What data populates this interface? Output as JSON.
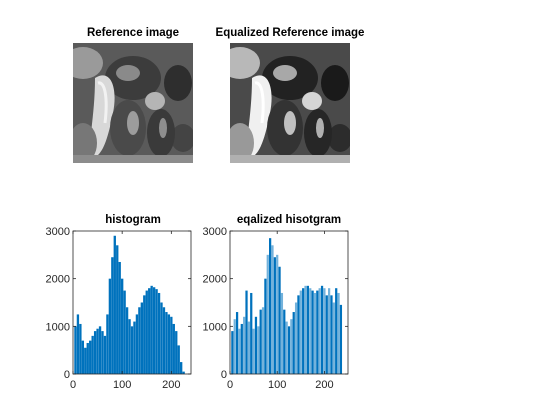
{
  "figure": {
    "titles": {
      "reference_image": "Reference image",
      "equalized_reference_image": "Equalized Reference image",
      "histogram": "histogram",
      "equalized_histogram": "eqalized hisotgram"
    }
  },
  "chart_data": [
    {
      "type": "bar",
      "title": "histogram",
      "xlabel": "",
      "ylabel": "",
      "xlim": [
        0,
        240
      ],
      "ylim": [
        0,
        3000
      ],
      "xticks": [
        0,
        100,
        200
      ],
      "yticks": [
        0,
        1000,
        2000,
        3000
      ],
      "grid": false,
      "color": "#0072BD",
      "x": [
        5,
        10,
        15,
        20,
        25,
        30,
        35,
        40,
        45,
        50,
        55,
        60,
        65,
        70,
        75,
        80,
        85,
        90,
        95,
        100,
        105,
        110,
        115,
        120,
        125,
        130,
        135,
        140,
        145,
        150,
        155,
        160,
        165,
        170,
        175,
        180,
        185,
        190,
        195,
        200,
        205,
        210,
        215,
        220,
        225
      ],
      "values": [
        1000,
        1250,
        1050,
        700,
        550,
        650,
        700,
        800,
        900,
        950,
        1000,
        900,
        800,
        1250,
        2000,
        2450,
        2900,
        2700,
        2350,
        2000,
        1750,
        1400,
        1150,
        1000,
        1100,
        1250,
        1400,
        1500,
        1650,
        1750,
        1800,
        1850,
        1820,
        1780,
        1700,
        1500,
        1400,
        1300,
        1250,
        1200,
        1050,
        900,
        600,
        250,
        50
      ]
    },
    {
      "type": "bar",
      "title": "eqalized hisotgram",
      "xlabel": "",
      "ylabel": "",
      "xlim": [
        0,
        250
      ],
      "ylim": [
        0,
        3000
      ],
      "xticks": [
        0,
        100,
        200
      ],
      "yticks": [
        0,
        1000,
        2000,
        3000
      ],
      "grid": false,
      "color": "#0072BD",
      "x": [
        5,
        10,
        15,
        20,
        25,
        30,
        35,
        40,
        45,
        50,
        55,
        60,
        65,
        70,
        75,
        80,
        85,
        90,
        95,
        100,
        105,
        110,
        115,
        120,
        125,
        130,
        135,
        140,
        145,
        150,
        155,
        160,
        165,
        170,
        175,
        180,
        185,
        190,
        195,
        200,
        205,
        210,
        215,
        220,
        225,
        230,
        235
      ],
      "values": [
        900,
        1150,
        1300,
        950,
        1050,
        1200,
        1750,
        1100,
        1700,
        950,
        1200,
        1000,
        1350,
        1400,
        2000,
        2500,
        2850,
        2700,
        2450,
        2500,
        2250,
        1700,
        1350,
        1100,
        1000,
        1150,
        1300,
        1500,
        1650,
        1750,
        1800,
        1850,
        1850,
        1800,
        1750,
        1700,
        1750,
        1800,
        1850,
        1800,
        1650,
        1800,
        1650,
        1500,
        1800,
        1700,
        1450
      ]
    }
  ]
}
